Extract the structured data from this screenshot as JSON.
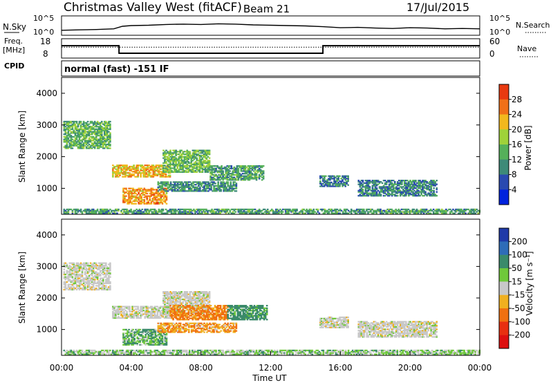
{
  "header": {
    "station": "Christmas Valley West (fitACF)",
    "beam": "Beam 21",
    "date": "17/Jul/2015"
  },
  "mode_label": "normal (fast) -151 IF",
  "chart_data": [
    {
      "type": "line",
      "panel": "noise",
      "left_label": "N.Sky",
      "right_label": "N.Search",
      "left_ticks": [
        "10^5",
        "10^0"
      ],
      "right_ticks": [
        "10^5",
        "10^0"
      ],
      "x": [
        0,
        1,
        2,
        3,
        3.5,
        4,
        5,
        6,
        7,
        8,
        9,
        10,
        11,
        12,
        13,
        14,
        15,
        16,
        17,
        18,
        19,
        20,
        21,
        22,
        23,
        24
      ],
      "series": [
        {
          "values": [
            1.2,
            1.3,
            1.4,
            1.6,
            2.3,
            2.5,
            2.6,
            2.8,
            2.9,
            2.8,
            3.0,
            2.9,
            2.7,
            2.6,
            2.5,
            2.4,
            2.2,
            1.9,
            2.0,
            1.8,
            1.7,
            1.9,
            1.8,
            1.6,
            1.7,
            1.6
          ]
        }
      ]
    },
    {
      "type": "line",
      "panel": "frequency",
      "left_label": "Freq.",
      "left_unit": "[MHz]",
      "right_label": "Nave",
      "bottom_label": "CPID",
      "left_ticks": [
        "18",
        "8"
      ],
      "right_ticks": [
        "60",
        "0"
      ],
      "ylim": [
        8,
        18
      ],
      "frequency_steps": [
        {
          "start": 0,
          "end": 3.3,
          "freq": 14.5
        },
        {
          "start": 3.3,
          "end": 15.0,
          "freq": 10.3
        },
        {
          "start": 15.0,
          "end": 24,
          "freq": 14.5
        }
      ],
      "nave": 34
    },
    {
      "type": "heatmap",
      "panel": "power",
      "ylabel": "Slant Range [km]",
      "yticks": [
        "1000",
        "2000",
        "3000",
        "4000"
      ],
      "ylim": [
        180,
        4500
      ],
      "xlim": [
        0,
        24
      ],
      "colorbar": {
        "label": "Power [dB]",
        "ticks": [
          "4",
          "8",
          "12",
          "16",
          "20",
          "24",
          "28"
        ],
        "colors": [
          "#0022dd",
          "#2a4ab0",
          "#3d8a78",
          "#55b05a",
          "#9fd23a",
          "#f2b81e",
          "#f07018",
          "#e83a10"
        ]
      },
      "regions": [
        {
          "t0": 0.1,
          "t1": 2.8,
          "r0": 2250,
          "r1": 3100,
          "p": 14
        },
        {
          "t0": 2.9,
          "t1": 6.2,
          "r0": 1350,
          "r1": 1750,
          "p": 22
        },
        {
          "t0": 5.8,
          "t1": 8.5,
          "r0": 1500,
          "r1": 2200,
          "p": 15
        },
        {
          "t0": 8.5,
          "t1": 11.6,
          "r0": 1250,
          "r1": 1700,
          "p": 12
        },
        {
          "t0": 3.5,
          "t1": 6.0,
          "r0": 500,
          "r1": 1000,
          "p": 24
        },
        {
          "t0": 5.5,
          "t1": 10.0,
          "r0": 900,
          "r1": 1200,
          "p": 11
        },
        {
          "t0": 14.8,
          "t1": 16.4,
          "r0": 1050,
          "r1": 1400,
          "p": 9
        },
        {
          "t0": 17.0,
          "t1": 21.5,
          "r0": 750,
          "r1": 1250,
          "p": 10
        },
        {
          "t0": 0.1,
          "t1": 24,
          "r0": 200,
          "r1": 340,
          "p": 12
        }
      ]
    },
    {
      "type": "heatmap",
      "panel": "velocity",
      "ylabel": "Slant Range [km]",
      "yticks": [
        "1000",
        "2000",
        "3000",
        "4000"
      ],
      "ylim": [
        180,
        4500
      ],
      "xlim": [
        0,
        24
      ],
      "xticks": [
        "00:00",
        "04:00",
        "08:00",
        "12:00",
        "16:00",
        "20:00",
        "00:00"
      ],
      "xlabel": "Time UT",
      "colorbar": {
        "label": "Velocity [m s⁻¹]",
        "ticks": [
          "200",
          "100",
          "50",
          "15",
          "-15",
          "-50",
          "-100",
          "-200"
        ],
        "colors": [
          "#1f3aa8",
          "#2e6cb8",
          "#3a8a6a",
          "#6fc83a",
          "#c8c8c8",
          "#f0b020",
          "#f07010",
          "#e83010",
          "#dd1010"
        ]
      },
      "regions": [
        {
          "t0": 0.1,
          "t1": 2.8,
          "r0": 2250,
          "r1": 3100,
          "v": 0
        },
        {
          "t0": 2.9,
          "t1": 6.2,
          "r0": 1350,
          "r1": 1750,
          "v": 0
        },
        {
          "t0": 5.8,
          "t1": 8.5,
          "r0": 1500,
          "r1": 2200,
          "v": 0
        },
        {
          "t0": 6.2,
          "t1": 9.5,
          "r0": 1300,
          "r1": 1750,
          "v": -40
        },
        {
          "t0": 9.5,
          "t1": 11.8,
          "r0": 1300,
          "r1": 1750,
          "v": 45
        },
        {
          "t0": 3.5,
          "t1": 6.0,
          "r0": 500,
          "r1": 1000,
          "v": 30
        },
        {
          "t0": 5.5,
          "t1": 10.0,
          "r0": 900,
          "r1": 1200,
          "v": -30
        },
        {
          "t0": 14.8,
          "t1": 16.4,
          "r0": 1050,
          "r1": 1400,
          "v": 0
        },
        {
          "t0": 17.0,
          "t1": 21.5,
          "r0": 750,
          "r1": 1250,
          "v": 0
        },
        {
          "t0": 0.1,
          "t1": 24,
          "r0": 200,
          "r1": 340,
          "v": 20
        }
      ]
    }
  ]
}
